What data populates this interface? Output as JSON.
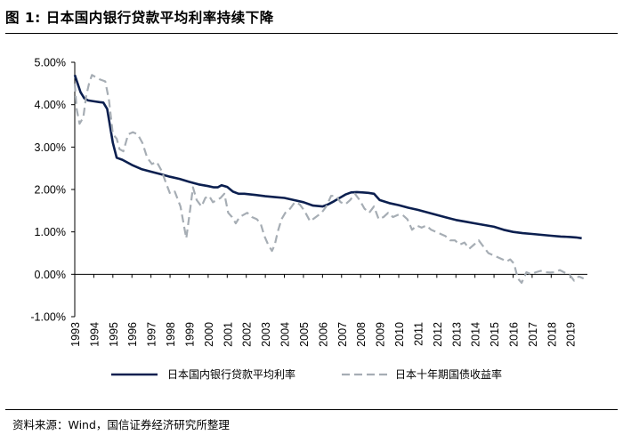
{
  "figure": {
    "title": "图 1:  日本国内银行贷款平均利率持续下降",
    "source": "资料来源：Wind，国信证券经济研究所整理"
  },
  "chart_data": {
    "type": "line",
    "title": "日本国内银行贷款平均利率持续下降",
    "xlabel": "",
    "ylabel": "",
    "xlim": [
      1993,
      2019.9
    ],
    "ylim": [
      -1.0,
      5.0
    ],
    "y_ticks": [
      "5.00%",
      "4.00%",
      "3.00%",
      "2.00%",
      "1.00%",
      "0.00%",
      "-1.00%"
    ],
    "y_tick_values": [
      5,
      4,
      3,
      2,
      1,
      0,
      -1
    ],
    "x_ticks": [
      "1993",
      "1994",
      "1995",
      "1996",
      "1997",
      "1998",
      "1999",
      "2000",
      "2001",
      "2002",
      "2003",
      "2004",
      "2005",
      "2006",
      "2007",
      "2008",
      "2009",
      "2010",
      "2011",
      "2012",
      "2013",
      "2014",
      "2015",
      "2016",
      "2017",
      "2018",
      "2019"
    ],
    "grid": false,
    "legend_position": "bottom",
    "series": [
      {
        "name": "日本国内银行贷款平均利率",
        "style": "solid",
        "color": "#0b1f4f",
        "x": [
          1993.0,
          1993.15,
          1993.3,
          1993.5,
          1993.7,
          1994.0,
          1994.3,
          1994.5,
          1994.7,
          1994.85,
          1995.0,
          1995.2,
          1995.5,
          1996.0,
          1996.5,
          1997.0,
          1997.5,
          1998.0,
          1998.5,
          1999.0,
          1999.5,
          2000.0,
          2000.3,
          2000.5,
          2000.7,
          2001.0,
          2001.3,
          2001.6,
          2001.9,
          2002.5,
          2003.0,
          2003.5,
          2004.0,
          2004.5,
          2005.0,
          2005.5,
          2006.0,
          2006.3,
          2006.6,
          2006.9,
          2007.2,
          2007.5,
          2007.8,
          2008.1,
          2008.4,
          2008.7,
          2009.0,
          2009.5,
          2010.0,
          2010.5,
          2011.0,
          2011.5,
          2012.0,
          2012.5,
          2013.0,
          2013.5,
          2014.0,
          2014.5,
          2015.0,
          2015.5,
          2016.0,
          2016.5,
          2017.0,
          2017.5,
          2018.0,
          2018.5,
          2019.0,
          2019.3,
          2019.6
        ],
        "values": [
          4.7,
          4.5,
          4.3,
          4.15,
          4.1,
          4.08,
          4.06,
          4.05,
          3.9,
          3.5,
          3.1,
          2.75,
          2.7,
          2.58,
          2.48,
          2.42,
          2.36,
          2.3,
          2.25,
          2.18,
          2.12,
          2.08,
          2.05,
          2.05,
          2.1,
          2.06,
          1.95,
          1.9,
          1.9,
          1.87,
          1.84,
          1.82,
          1.8,
          1.75,
          1.7,
          1.62,
          1.6,
          1.65,
          1.72,
          1.8,
          1.88,
          1.93,
          1.94,
          1.93,
          1.92,
          1.9,
          1.75,
          1.68,
          1.63,
          1.57,
          1.52,
          1.46,
          1.4,
          1.34,
          1.28,
          1.24,
          1.2,
          1.16,
          1.12,
          1.05,
          1.0,
          0.97,
          0.95,
          0.93,
          0.91,
          0.89,
          0.88,
          0.87,
          0.85
        ]
      },
      {
        "name": "日本十年期国债收益率",
        "style": "dashed",
        "color": "#a6adb4",
        "x": [
          1993.0,
          1993.1,
          1993.25,
          1993.45,
          1993.6,
          1993.75,
          1993.9,
          1994.1,
          1994.3,
          1994.6,
          1994.8,
          1995.0,
          1995.2,
          1995.35,
          1995.55,
          1995.8,
          1996.05,
          1996.3,
          1996.55,
          1996.8,
          1997.05,
          1997.3,
          1997.55,
          1997.75,
          1998.0,
          1998.25,
          1998.55,
          1998.75,
          1998.85,
          1999.05,
          1999.2,
          1999.4,
          1999.65,
          1999.85,
          2000.05,
          2000.25,
          2000.45,
          2000.65,
          2000.85,
          2001.05,
          2001.25,
          2001.45,
          2001.65,
          2001.85,
          2002.05,
          2002.3,
          2002.55,
          2002.75,
          2002.95,
          2003.15,
          2003.35,
          2003.5,
          2003.65,
          2003.85,
          2004.05,
          2004.3,
          2004.55,
          2004.8,
          2005.05,
          2005.35,
          2005.65,
          2005.95,
          2006.2,
          2006.45,
          2006.7,
          2006.95,
          2007.2,
          2007.45,
          2007.7,
          2007.95,
          2008.2,
          2008.45,
          2008.7,
          2008.95,
          2009.2,
          2009.45,
          2009.7,
          2009.95,
          2010.2,
          2010.45,
          2010.7,
          2010.95,
          2011.2,
          2011.45,
          2011.7,
          2011.95,
          2012.2,
          2012.45,
          2012.7,
          2012.95,
          2013.2,
          2013.45,
          2013.7,
          2013.95,
          2014.2,
          2014.45,
          2014.7,
          2014.95,
          2015.2,
          2015.45,
          2015.65,
          2015.85,
          2016.05,
          2016.25,
          2016.45,
          2016.7,
          2016.95,
          2017.2,
          2017.45,
          2017.7,
          2017.95,
          2018.2,
          2018.45,
          2018.7,
          2018.95,
          2019.2,
          2019.45,
          2019.7
        ],
        "values": [
          4.5,
          3.9,
          3.55,
          3.7,
          4.2,
          4.5,
          4.7,
          4.65,
          4.6,
          4.55,
          4.1,
          3.3,
          3.2,
          2.95,
          2.9,
          3.3,
          3.35,
          3.3,
          3.1,
          2.75,
          2.6,
          2.65,
          2.45,
          2.2,
          1.9,
          1.95,
          1.6,
          1.1,
          0.85,
          1.5,
          2.05,
          1.75,
          1.6,
          1.8,
          1.85,
          1.7,
          1.75,
          1.8,
          1.9,
          1.45,
          1.35,
          1.2,
          1.35,
          1.4,
          1.45,
          1.35,
          1.3,
          1.2,
          0.9,
          0.7,
          0.55,
          0.7,
          1.0,
          1.3,
          1.45,
          1.55,
          1.7,
          1.65,
          1.5,
          1.25,
          1.35,
          1.45,
          1.6,
          1.85,
          1.85,
          1.7,
          1.65,
          1.75,
          1.9,
          1.75,
          1.55,
          1.45,
          1.6,
          1.3,
          1.35,
          1.45,
          1.35,
          1.4,
          1.4,
          1.3,
          1.05,
          1.15,
          1.1,
          1.15,
          1.05,
          1.0,
          0.95,
          0.9,
          0.8,
          0.8,
          0.7,
          0.75,
          0.6,
          0.7,
          0.8,
          0.65,
          0.5,
          0.45,
          0.4,
          0.35,
          0.3,
          0.35,
          0.25,
          -0.1,
          -0.2,
          0.05,
          0.0,
          0.05,
          0.08,
          0.05,
          0.04,
          0.05,
          0.1,
          0.04,
          0.0,
          -0.15,
          -0.05,
          -0.1
        ]
      }
    ]
  }
}
